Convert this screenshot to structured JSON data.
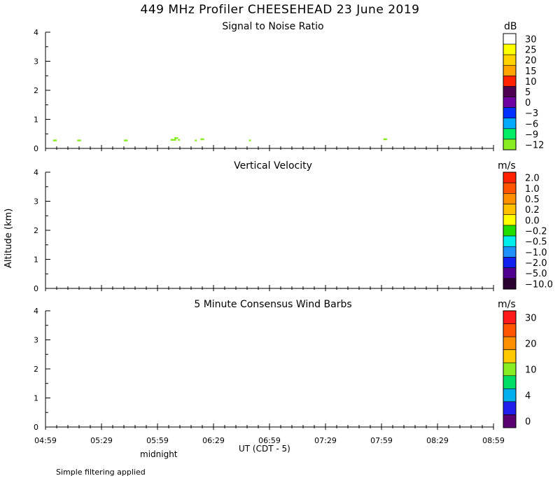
{
  "title": "449 MHz Profiler CHEESEHEAD 23 June 2019",
  "ylabel": "Altitude (km)",
  "xlabel": "UT  (CDT - 5)",
  "midnight_label": "midnight",
  "footer": "Simple filtering applied",
  "colors": {
    "axis": "#000000",
    "snr_echo": "#88ee22"
  },
  "chart_data": [
    {
      "type": "heatmap",
      "title": "Signal to Noise Ratio",
      "units": "dB",
      "x_ticks": [
        "04:59",
        "05:29",
        "05:59",
        "06:29",
        "06:59",
        "07:29",
        "07:59",
        "08:29",
        "08:59"
      ],
      "x_range_minutes": [
        0,
        240
      ],
      "y_ticks": [
        "0",
        "1",
        "2",
        "3",
        "4"
      ],
      "y_range_km": [
        0,
        4
      ],
      "colorbar": {
        "labels": [
          "30",
          "25",
          "20",
          "15",
          "10",
          "5",
          "0",
          "-3",
          "-6",
          "-9",
          "-12"
        ],
        "colors": [
          "#ffffff",
          "#ffff00",
          "#ffd200",
          "#ffa500",
          "#ff2200",
          "#4d0050",
          "#7000a0",
          "#0030ff",
          "#00aaff",
          "#00ee66",
          "#88ee22"
        ]
      },
      "echoes": [
        {
          "time_min": 4,
          "altitude_km": 0.28,
          "width_min": 2
        },
        {
          "time_min": 17,
          "altitude_km": 0.28,
          "width_min": 2
        },
        {
          "time_min": 42,
          "altitude_km": 0.28,
          "width_min": 2
        },
        {
          "time_min": 67,
          "altitude_km": 0.3,
          "width_min": 3
        },
        {
          "time_min": 69,
          "altitude_km": 0.36,
          "width_min": 2
        },
        {
          "time_min": 71,
          "altitude_km": 0.3,
          "width_min": 1
        },
        {
          "time_min": 80,
          "altitude_km": 0.28,
          "width_min": 1
        },
        {
          "time_min": 83,
          "altitude_km": 0.32,
          "width_min": 2
        },
        {
          "time_min": 109,
          "altitude_km": 0.28,
          "width_min": 1
        },
        {
          "time_min": 181,
          "altitude_km": 0.32,
          "width_min": 2
        }
      ]
    },
    {
      "type": "heatmap",
      "title": "Vertical Velocity",
      "units": "m/s",
      "x_ticks": [
        "04:59",
        "05:29",
        "05:59",
        "06:29",
        "06:59",
        "07:29",
        "07:59",
        "08:29",
        "08:59"
      ],
      "x_range_minutes": [
        0,
        240
      ],
      "y_ticks": [
        "0",
        "1",
        "2",
        "3",
        "4"
      ],
      "y_range_km": [
        0,
        4
      ],
      "colorbar": {
        "labels": [
          "2.0",
          "1.0",
          "0.5",
          "0.2",
          "0.0",
          "-0.2",
          "-0.5",
          "-1.0",
          "-2.0",
          "-5.0",
          "-10.0"
        ],
        "colors": [
          "#ff2200",
          "#ff5500",
          "#ff9000",
          "#ffc000",
          "#ffff00",
          "#22dd00",
          "#00eeee",
          "#1e90ff",
          "#1020ee",
          "#500090",
          "#2a0030"
        ]
      },
      "echoes": []
    },
    {
      "type": "heatmap",
      "title": "5 Minute Consensus Wind Barbs",
      "units": "m/s",
      "x_ticks": [
        "04:59",
        "05:29",
        "05:59",
        "06:29",
        "06:59",
        "07:29",
        "07:59",
        "08:29",
        "08:59"
      ],
      "x_range_minutes": [
        0,
        240
      ],
      "y_ticks": [
        "0",
        "1",
        "2",
        "3",
        "4"
      ],
      "y_range_km": [
        0,
        4
      ],
      "colorbar": {
        "labels": [
          "30",
          "20",
          "10",
          "4",
          "0"
        ],
        "colors": [
          "#ff1a1a",
          "#ff5500",
          "#ff9000",
          "#ffc800",
          "#88ee22",
          "#00dd66",
          "#00b0ee",
          "#2020ee",
          "#5a0070"
        ]
      },
      "echoes": []
    }
  ]
}
